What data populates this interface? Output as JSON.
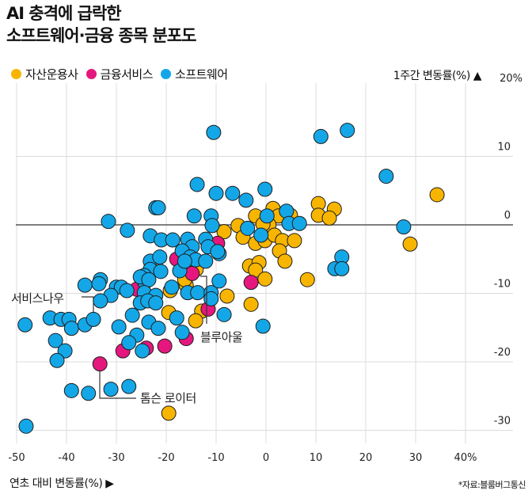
{
  "header": {
    "title_line1": "AI 충격에 급락한",
    "title_line2": "소프트웨어·금융 종목 분포도"
  },
  "source": "*자료:블룸버그통신",
  "chart_data": {
    "type": "scatter",
    "title": "AI 충격에 급락한 소프트웨어·금융 종목 분포도",
    "xlabel": "연초 대비 변동률(%) ▶",
    "ylabel": "1주간 변동률(%) ▲",
    "xlim": [
      -50,
      40
    ],
    "ylim": [
      -30,
      20
    ],
    "grid": true,
    "legend_placement": "top-left",
    "x_ticks": [
      "-50",
      "-40",
      "-30",
      "-20",
      "-10",
      "0",
      "10",
      "20",
      "30",
      "40%"
    ],
    "x_tick_values": [
      -50,
      -40,
      -30,
      -20,
      -10,
      0,
      10,
      20,
      30,
      40
    ],
    "y_ticks": [
      "20%",
      "10",
      "0",
      "-10",
      "-20",
      "-30"
    ],
    "y_tick_values": [
      20,
      10,
      0,
      -10,
      -20,
      -30
    ],
    "series": [
      {
        "name": "자산운용사",
        "color": "#F7B500",
        "points": [
          [
            34.3,
            4.4
          ],
          [
            10.5,
            3.1
          ],
          [
            13.7,
            2.3
          ],
          [
            10.5,
            1.4
          ],
          [
            12.7,
            1.0
          ],
          [
            1.4,
            2.4
          ],
          [
            2.5,
            1.3
          ],
          [
            4.9,
            1.4
          ],
          [
            -2.1,
            1.3
          ],
          [
            0.6,
            0
          ],
          [
            -0.6,
            0.1
          ],
          [
            -5.6,
            -0.1
          ],
          [
            -8.4,
            -1.0
          ],
          [
            -4.6,
            -1.8
          ],
          [
            -2.1,
            -2.7
          ],
          [
            -0.2,
            -2.3
          ],
          [
            1.7,
            -1.5
          ],
          [
            3.3,
            -2.3
          ],
          [
            5.7,
            -2.3
          ],
          [
            2.7,
            -3.8
          ],
          [
            3.8,
            -5.3
          ],
          [
            28.9,
            -2.8
          ],
          [
            -11.0,
            -3.0
          ],
          [
            -3.3,
            -6.0
          ],
          [
            -1.4,
            -5.5
          ],
          [
            -2.1,
            -6.6
          ],
          [
            -0.2,
            -7.9
          ],
          [
            8.3,
            -8.0
          ],
          [
            -14.0,
            -6.5
          ],
          [
            -16.0,
            -8.8
          ],
          [
            -16.3,
            -8.0
          ],
          [
            -19.2,
            -9.6
          ],
          [
            -7.8,
            -10.4
          ],
          [
            -3.0,
            -11.6
          ],
          [
            -12.9,
            -12.6
          ],
          [
            -14.1,
            -14.0
          ],
          [
            -19.5,
            -12.8
          ],
          [
            -19.5,
            -27.5
          ]
        ]
      },
      {
        "name": "금융서비스",
        "color": "#E5177F",
        "points": [
          [
            -9.7,
            -2.7
          ],
          [
            -17.9,
            -5.0
          ],
          [
            -14.8,
            -7.1
          ],
          [
            -25.9,
            -9.4
          ],
          [
            -3.0,
            -8.4
          ],
          [
            -11.6,
            -12.3
          ],
          [
            -16.0,
            -16.6
          ],
          [
            -20.3,
            -17.7
          ],
          [
            -24.0,
            -18.0
          ],
          [
            -28.7,
            -18.4
          ],
          [
            -33.3,
            -20.3
          ]
        ]
      },
      {
        "name": "소프트웨어",
        "color": "#14A7E8",
        "points": [
          [
            -10.5,
            13.5
          ],
          [
            11.0,
            12.9
          ],
          [
            16.3,
            13.8
          ],
          [
            24.1,
            7.1
          ],
          [
            -13.8,
            5.9
          ],
          [
            -10.0,
            4.6
          ],
          [
            -6.7,
            4.6
          ],
          [
            -4.0,
            3.6
          ],
          [
            -0.2,
            5.2
          ],
          [
            -22.1,
            2.5
          ],
          [
            -21.6,
            2.5
          ],
          [
            -31.6,
            0.5
          ],
          [
            -27.8,
            -0.8
          ],
          [
            -14.4,
            1.3
          ],
          [
            -11.0,
            1.3
          ],
          [
            -10.8,
            -0.1
          ],
          [
            4.1,
            2.0
          ],
          [
            4.6,
            0.2
          ],
          [
            6.7,
            0.2
          ],
          [
            0.2,
            1.3
          ],
          [
            -3.7,
            -0.5
          ],
          [
            -1.0,
            -1.5
          ],
          [
            27.6,
            -0.3
          ],
          [
            15.2,
            -4.7
          ],
          [
            13.8,
            -6.4
          ],
          [
            15.2,
            -6.4
          ],
          [
            -23.2,
            -1.6
          ],
          [
            -21.0,
            -2.2
          ],
          [
            -18.7,
            -2.2
          ],
          [
            -15.7,
            -2.1
          ],
          [
            -14.8,
            -3.2
          ],
          [
            -12.1,
            -2.1
          ],
          [
            -11.6,
            -3.2
          ],
          [
            -9.4,
            -4.2
          ],
          [
            -9.7,
            -3.9
          ],
          [
            -23.2,
            -5.3
          ],
          [
            -21.3,
            -4.7
          ],
          [
            -23.2,
            -6.5
          ],
          [
            -21.1,
            -6.8
          ],
          [
            -24.4,
            -7.4
          ],
          [
            -24.3,
            -8.4
          ],
          [
            -25.2,
            -7.6
          ],
          [
            -23.5,
            -8.0
          ],
          [
            -16.8,
            -3.8
          ],
          [
            -15.2,
            -4.7
          ],
          [
            -17.3,
            -6.7
          ],
          [
            -14.1,
            -5.1
          ],
          [
            -12.1,
            -5.3
          ],
          [
            -16.3,
            -5.3
          ],
          [
            -36.3,
            -8.8
          ],
          [
            -33.2,
            -8.0
          ],
          [
            -33.5,
            -8.6
          ],
          [
            -30.0,
            -9.1
          ],
          [
            -29.0,
            -9.1
          ],
          [
            -27.9,
            -9.6
          ],
          [
            -31.1,
            -10.3
          ],
          [
            -33.2,
            -11.1
          ],
          [
            -24.4,
            -9.9
          ],
          [
            -25.2,
            -11.4
          ],
          [
            -22.1,
            -10.3
          ],
          [
            -23.7,
            -11.1
          ],
          [
            -22.1,
            -11.4
          ],
          [
            -18.9,
            -9.1
          ],
          [
            -15.7,
            -9.9
          ],
          [
            -13.7,
            -9.9
          ],
          [
            -11.0,
            -9.9
          ],
          [
            -11.0,
            -10.8
          ],
          [
            -9.4,
            -8.2
          ],
          [
            -8.4,
            -13.1
          ],
          [
            -43.3,
            -13.6
          ],
          [
            -41.1,
            -13.8
          ],
          [
            -39.5,
            -13.8
          ],
          [
            -48.3,
            -14.6
          ],
          [
            -39.0,
            -15.1
          ],
          [
            -36.3,
            -14.6
          ],
          [
            -34.6,
            -13.8
          ],
          [
            -26.8,
            -13.2
          ],
          [
            -29.5,
            -14.9
          ],
          [
            -23.5,
            -14.2
          ],
          [
            -21.6,
            -15.1
          ],
          [
            -17.9,
            -13.6
          ],
          [
            -0.6,
            -14.8
          ],
          [
            -42.2,
            -16.9
          ],
          [
            -40.3,
            -18.4
          ],
          [
            -41.9,
            -19.8
          ],
          [
            -25.9,
            -16.1
          ],
          [
            -27.5,
            -17.2
          ],
          [
            -24.8,
            -18.4
          ],
          [
            -16.8,
            -15.7
          ],
          [
            -39.0,
            -24.2
          ],
          [
            -35.6,
            -24.6
          ],
          [
            -31.1,
            -24.0
          ],
          [
            -27.5,
            -23.6
          ],
          [
            -48.1,
            -29.4
          ]
        ]
      }
    ],
    "annotations": [
      {
        "label": "서비스나우",
        "point": [
          -34.6,
          -13.8
        ]
      },
      {
        "label": "블루아울",
        "point": [
          -11.6,
          -12.3
        ]
      },
      {
        "label": "톰슨 로이터",
        "point": [
          -33.3,
          -20.3
        ]
      }
    ]
  }
}
